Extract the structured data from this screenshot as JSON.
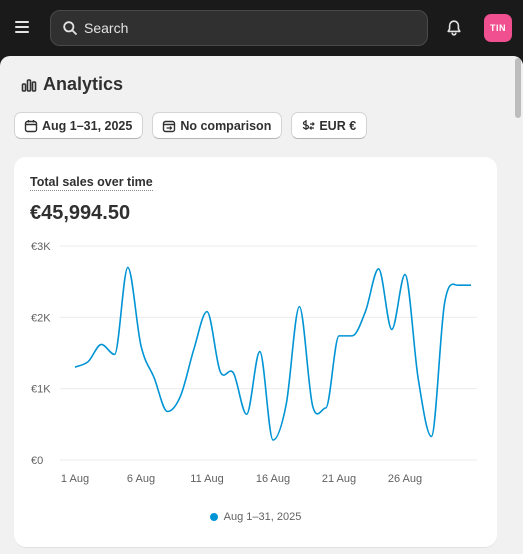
{
  "topbar": {
    "search_placeholder": "Search",
    "avatar_initials": "TIN",
    "avatar_color": "#f0508f"
  },
  "page": {
    "title": "Analytics"
  },
  "filters": {
    "date_range": "Aug 1–31, 2025",
    "comparison": "No comparison",
    "currency": "EUR €"
  },
  "card": {
    "title": "Total sales over time",
    "total": "€45,994.50"
  },
  "chart_data": {
    "type": "line",
    "title": "Total sales over time",
    "xlabel": "",
    "ylabel": "",
    "x": [
      "1 Aug",
      "2 Aug",
      "3 Aug",
      "4 Aug",
      "5 Aug",
      "6 Aug",
      "7 Aug",
      "8 Aug",
      "9 Aug",
      "10 Aug",
      "11 Aug",
      "12 Aug",
      "13 Aug",
      "14 Aug",
      "15 Aug",
      "16 Aug",
      "17 Aug",
      "18 Aug",
      "19 Aug",
      "20 Aug",
      "21 Aug",
      "22 Aug",
      "23 Aug",
      "24 Aug",
      "25 Aug",
      "26 Aug",
      "27 Aug",
      "28 Aug",
      "29 Aug",
      "30 Aug",
      "31 Aug"
    ],
    "x_ticks": [
      "1 Aug",
      "6 Aug",
      "11 Aug",
      "16 Aug",
      "21 Aug",
      "26 Aug"
    ],
    "y_ticks": [
      "€0",
      "€1K",
      "€2K",
      "€3K"
    ],
    "ylim": [
      0,
      3000
    ],
    "series": [
      {
        "name": "Aug 1–31, 2025",
        "color": "#0094d5",
        "values": [
          1300,
          1380,
          1620,
          1480,
          2700,
          1600,
          1150,
          680,
          900,
          1550,
          2080,
          1240,
          1220,
          640,
          1520,
          280,
          780,
          2150,
          760,
          730,
          1740,
          1740,
          2080,
          2680,
          1830,
          2600,
          1140,
          330,
          2200,
          2450,
          2450
        ]
      }
    ],
    "legend": "bottom-center",
    "grid": true
  }
}
